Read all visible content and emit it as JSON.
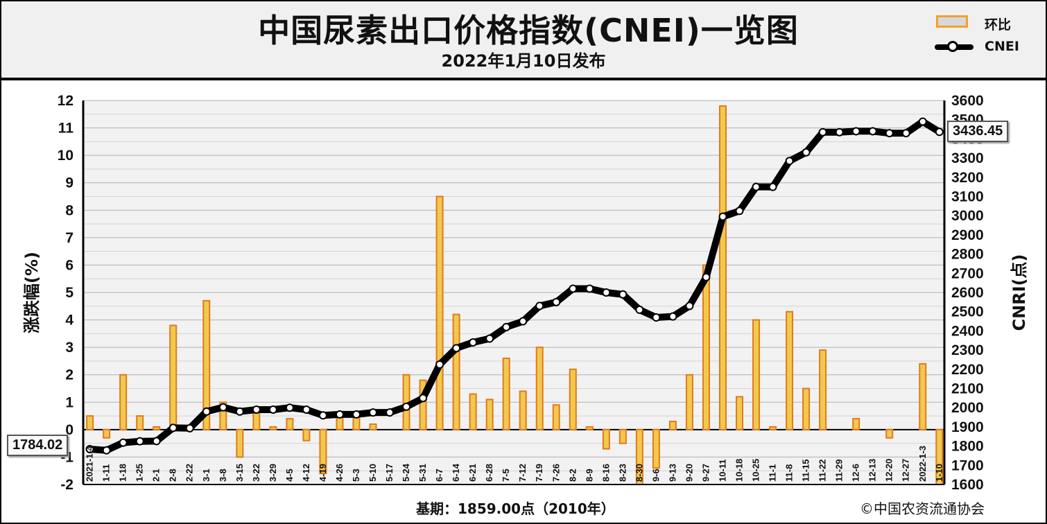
{
  "title": "中国尿素出口价格指数(CNEI)一览图",
  "subtitle": "2022年1月10日发布",
  "legend": {
    "bar_label": "环比",
    "line_label": "CNEI"
  },
  "callouts": {
    "start_value": "1784.02",
    "end_value": "3436.45"
  },
  "footer": {
    "base": "基期：1859.00点（2010年）",
    "copyright": "©中国农资流通协会"
  },
  "colors": {
    "bar_fill": "#f2c94c",
    "bar_border": "#e07a1f",
    "line": "#000000",
    "marker_fill": "#ffffff",
    "plot_bg": "#f2f2f2",
    "grid": "#b0b0b0"
  },
  "chart_data": {
    "type": "bar+line",
    "title": "中国尿素出口价格指数(CNEI)一览图",
    "ylabel_left": "涨跌幅(%)",
    "ylabel_right": "CNRI(点)",
    "ylim_left": [
      -2,
      12
    ],
    "ylim_right": [
      1600,
      3600
    ],
    "yticks_left": [
      "-2",
      "-1",
      "0",
      "1",
      "2",
      "3",
      "4",
      "5",
      "6",
      "7",
      "8",
      "9",
      "10",
      "11",
      "12"
    ],
    "yticks_right": [
      "1600",
      "1700",
      "1800",
      "1900",
      "2000",
      "2100",
      "2200",
      "2300",
      "2400",
      "2500",
      "2600",
      "2700",
      "2800",
      "2900",
      "3000",
      "3100",
      "3200",
      "3300",
      "3400",
      "3500",
      "3600"
    ],
    "x_tick_labels": [
      "2021-1-4",
      "1-11",
      "1-18",
      "1-25",
      "2-1",
      "2-8",
      "2-22",
      "3-1",
      "3-8",
      "3-15",
      "3-22",
      "3-29",
      "4-5",
      "4-12",
      "4-19",
      "4-26",
      "5-3",
      "5-10",
      "5-17",
      "5-24",
      "5-31",
      "6-7",
      "6-14",
      "6-21",
      "6-28",
      "7-5",
      "7-12",
      "7-19",
      "7-26",
      "8-2",
      "8-9",
      "8-16",
      "8-23",
      "8-30",
      "9-6",
      "9-13",
      "9-20",
      "9-27",
      "10-11",
      "10-18",
      "10-25",
      "11-1",
      "11-8",
      "11-15",
      "11-22",
      "11-29",
      "12-6",
      "12-13",
      "12-20",
      "12-27",
      "2022-1-3",
      "1-10"
    ],
    "grid": true,
    "legend_position": "top-right",
    "series": [
      {
        "name": "环比",
        "type": "bar",
        "axis": "left",
        "values": [
          0.5,
          -0.3,
          2.0,
          0.5,
          0.1,
          3.8,
          0.0,
          4.7,
          1.0,
          -1.0,
          0.8,
          0.1,
          0.4,
          -0.4,
          -1.6,
          0.6,
          0.5,
          0.2,
          0.0,
          2.0,
          1.8,
          8.5,
          4.2,
          1.3,
          1.1,
          2.6,
          1.4,
          3.0,
          0.9,
          2.2,
          0.1,
          -0.7,
          -0.5,
          -2.0,
          -1.4,
          0.3,
          2.0,
          6.0,
          11.8,
          1.2,
          4.0,
          0.1,
          4.3,
          1.5,
          2.9,
          0.0,
          0.4,
          0.0,
          -0.3,
          0.0,
          2.4,
          -2.0
        ]
      },
      {
        "name": "CNEI",
        "type": "line",
        "axis": "right",
        "values": [
          1784.02,
          1778,
          1818,
          1825,
          1826,
          1895,
          1893,
          1980,
          2002,
          1980,
          1990,
          1990,
          2000,
          1990,
          1960,
          1965,
          1965,
          1975,
          1975,
          2005,
          2050,
          2225,
          2310,
          2340,
          2360,
          2420,
          2450,
          2530,
          2550,
          2620,
          2620,
          2600,
          2590,
          2510,
          2470,
          2475,
          2530,
          2680,
          2995,
          3025,
          3150,
          3150,
          3285,
          3330,
          3435,
          3435,
          3440,
          3440,
          3430,
          3430,
          3490,
          3436.45
        ]
      }
    ]
  }
}
